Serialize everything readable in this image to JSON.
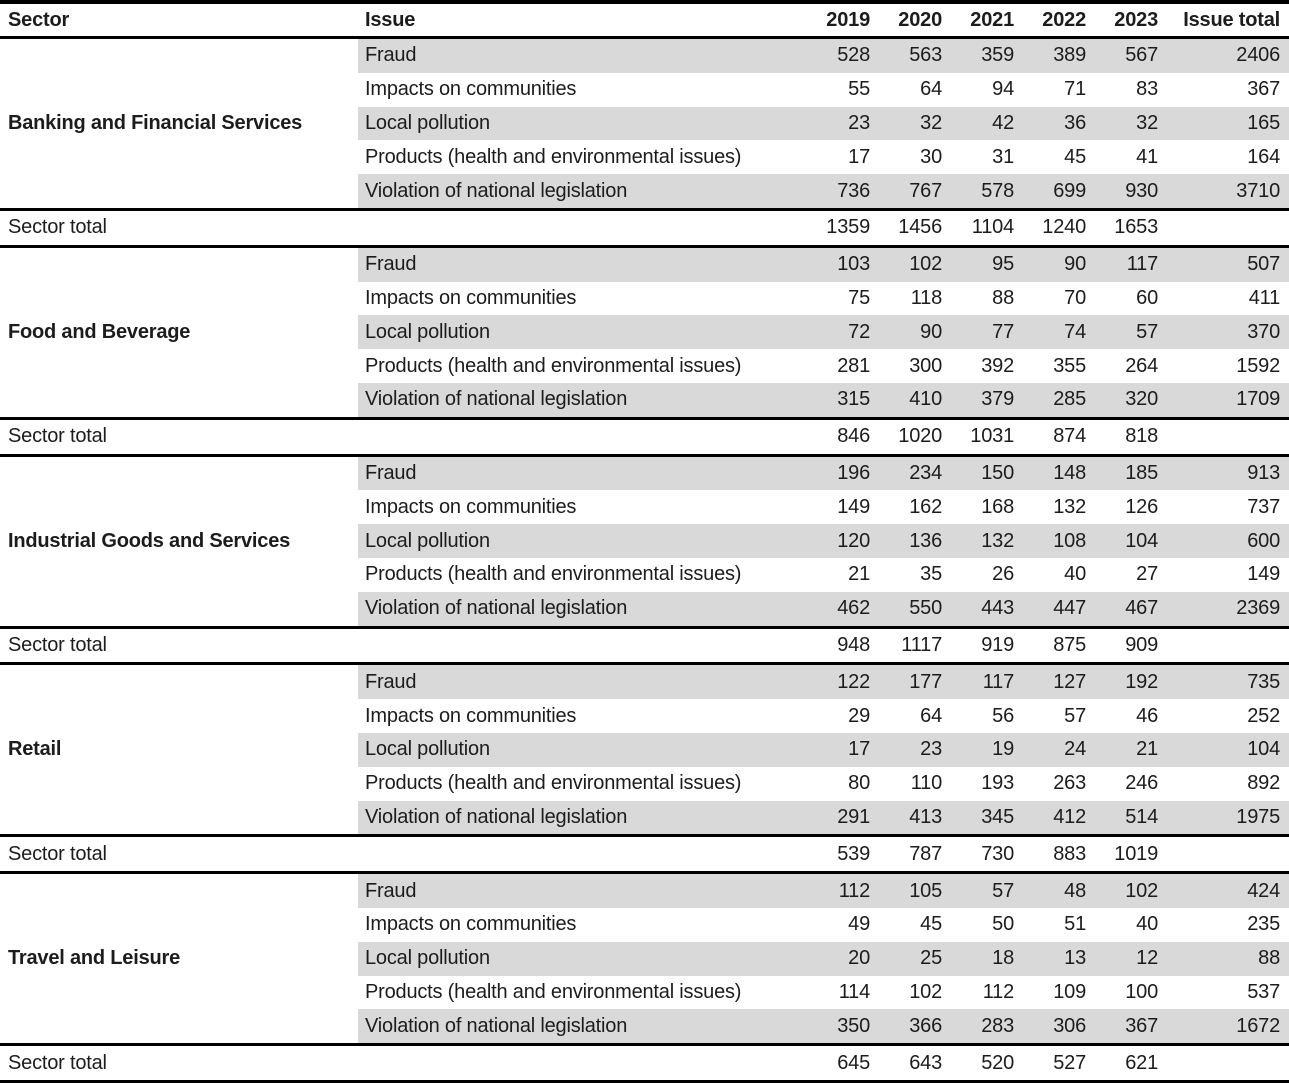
{
  "chart_data": {
    "type": "table",
    "columns": [
      "Sector",
      "Issue",
      "2019",
      "2020",
      "2021",
      "2022",
      "2023",
      "Issue total"
    ],
    "sector_total_label": "Sector total",
    "sectors": [
      {
        "name": "Banking and Financial Services",
        "issues": [
          {
            "label": "Fraud",
            "values": [
              528,
              563,
              359,
              389,
              567
            ],
            "issue_total": 2406
          },
          {
            "label": "Impacts on communities",
            "values": [
              55,
              64,
              94,
              71,
              83
            ],
            "issue_total": 367
          },
          {
            "label": "Local pollution",
            "values": [
              23,
              32,
              42,
              36,
              32
            ],
            "issue_total": 165
          },
          {
            "label": "Products (health and environmental issues)",
            "values": [
              17,
              30,
              31,
              45,
              41
            ],
            "issue_total": 164
          },
          {
            "label": "Violation of national legislation",
            "values": [
              736,
              767,
              578,
              699,
              930
            ],
            "issue_total": 3710
          }
        ],
        "sector_total": [
          1359,
          1456,
          1104,
          1240,
          1653
        ]
      },
      {
        "name": "Food and Beverage",
        "issues": [
          {
            "label": "Fraud",
            "values": [
              103,
              102,
              95,
              90,
              117
            ],
            "issue_total": 507
          },
          {
            "label": "Impacts on communities",
            "values": [
              75,
              118,
              88,
              70,
              60
            ],
            "issue_total": 411
          },
          {
            "label": "Local pollution",
            "values": [
              72,
              90,
              77,
              74,
              57
            ],
            "issue_total": 370
          },
          {
            "label": "Products (health and environmental issues)",
            "values": [
              281,
              300,
              392,
              355,
              264
            ],
            "issue_total": 1592
          },
          {
            "label": "Violation of national legislation",
            "values": [
              315,
              410,
              379,
              285,
              320
            ],
            "issue_total": 1709
          }
        ],
        "sector_total": [
          846,
          1020,
          1031,
          874,
          818
        ]
      },
      {
        "name": "Industrial Goods and Services",
        "issues": [
          {
            "label": "Fraud",
            "values": [
              196,
              234,
              150,
              148,
              185
            ],
            "issue_total": 913
          },
          {
            "label": "Impacts on communities",
            "values": [
              149,
              162,
              168,
              132,
              126
            ],
            "issue_total": 737
          },
          {
            "label": "Local pollution",
            "values": [
              120,
              136,
              132,
              108,
              104
            ],
            "issue_total": 600
          },
          {
            "label": "Products (health and environmental issues)",
            "values": [
              21,
              35,
              26,
              40,
              27
            ],
            "issue_total": 149
          },
          {
            "label": "Violation of national legislation",
            "values": [
              462,
              550,
              443,
              447,
              467
            ],
            "issue_total": 2369
          }
        ],
        "sector_total": [
          948,
          1117,
          919,
          875,
          909
        ]
      },
      {
        "name": "Retail",
        "issues": [
          {
            "label": "Fraud",
            "values": [
              122,
              177,
              117,
              127,
              192
            ],
            "issue_total": 735
          },
          {
            "label": "Impacts on communities",
            "values": [
              29,
              64,
              56,
              57,
              46
            ],
            "issue_total": 252
          },
          {
            "label": "Local pollution",
            "values": [
              17,
              23,
              19,
              24,
              21
            ],
            "issue_total": 104
          },
          {
            "label": "Products (health and environmental issues)",
            "values": [
              80,
              110,
              193,
              263,
              246
            ],
            "issue_total": 892
          },
          {
            "label": "Violation of national legislation",
            "values": [
              291,
              413,
              345,
              412,
              514
            ],
            "issue_total": 1975
          }
        ],
        "sector_total": [
          539,
          787,
          730,
          883,
          1019
        ]
      },
      {
        "name": "Travel and Leisure",
        "issues": [
          {
            "label": "Fraud",
            "values": [
              112,
              105,
              57,
              48,
              102
            ],
            "issue_total": 424
          },
          {
            "label": "Impacts on communities",
            "values": [
              49,
              45,
              50,
              51,
              40
            ],
            "issue_total": 235
          },
          {
            "label": "Local pollution",
            "values": [
              20,
              25,
              18,
              13,
              12
            ],
            "issue_total": 88
          },
          {
            "label": "Products (health and environmental issues)",
            "values": [
              114,
              102,
              112,
              109,
              100
            ],
            "issue_total": 537
          },
          {
            "label": "Violation of national legislation",
            "values": [
              350,
              366,
              283,
              306,
              367
            ],
            "issue_total": 1672
          }
        ],
        "sector_total": [
          645,
          643,
          520,
          527,
          621
        ]
      }
    ],
    "styles": {
      "stripe_color": "#d9d9d9",
      "text_color": "#1c1c1c",
      "line_color": "#000000"
    }
  }
}
